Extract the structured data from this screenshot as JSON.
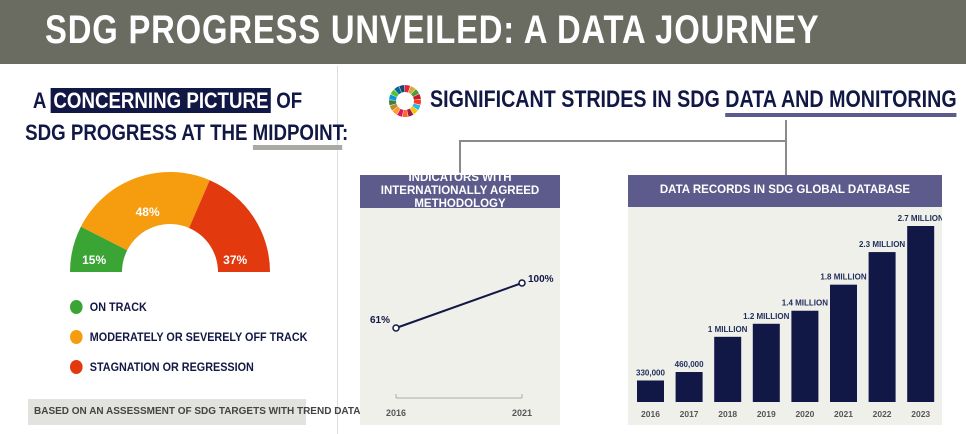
{
  "header": {
    "title": "SDG PROGRESS UNVEILED: A DATA JOURNEY"
  },
  "left": {
    "title_a": "A",
    "title_highlight": "CONCERNING PICTURE",
    "title_of": "OF",
    "title_line2": "SDG PROGRESS AT THE",
    "title_underline": "MIDPOINT",
    "title_colon": ":",
    "legend": [
      {
        "label": "ON TRACK",
        "color": "#3aa535"
      },
      {
        "label": "MODERATELY OR SEVERELY OFF TRACK",
        "color": "#f59c0f"
      },
      {
        "label": "STAGNATION OR REGRESSION",
        "color": "#e2390f"
      }
    ],
    "note": "BASED ON AN ASSESSMENT OF SDG TARGETS WITH TREND DATA."
  },
  "right": {
    "title_a": "SIGNIFICANT STRIDES IN SDG ",
    "title_underline": "DATA AND MONITORING"
  },
  "chart_data": [
    {
      "type": "pie",
      "title": "SDG progress at the midpoint",
      "categories": [
        "ON TRACK",
        "MODERATELY OR SEVERELY OFF TRACK",
        "STAGNATION OR REGRESSION"
      ],
      "values": [
        15,
        48,
        37
      ],
      "labels": [
        "15%",
        "48%",
        "37%"
      ],
      "colors": [
        "#3aa535",
        "#f59c0f",
        "#e2390f"
      ]
    },
    {
      "type": "line",
      "title": "INDICATORS WITH INTERNATIONALLY AGREED METHODOLOGY",
      "x": [
        "2016",
        "2021"
      ],
      "values": [
        61,
        100
      ],
      "labels": [
        "61%",
        "100%"
      ]
    },
    {
      "type": "bar",
      "title": "DATA RECORDS IN SDG GLOBAL DATABASE",
      "categories": [
        "2016",
        "2017",
        "2018",
        "2019",
        "2020",
        "2021",
        "2022",
        "2023"
      ],
      "values": [
        330000,
        460000,
        1000000,
        1200000,
        1400000,
        1800000,
        2300000,
        2700000
      ],
      "labels": [
        "330,000",
        "460,000",
        "1 MILLION",
        "1.2 MILLION",
        "1.4 MILLION",
        "1.8 MILLION",
        "2.3 MILLION",
        "2.7 MILLION"
      ],
      "ylim": [
        0,
        2700000
      ]
    }
  ]
}
